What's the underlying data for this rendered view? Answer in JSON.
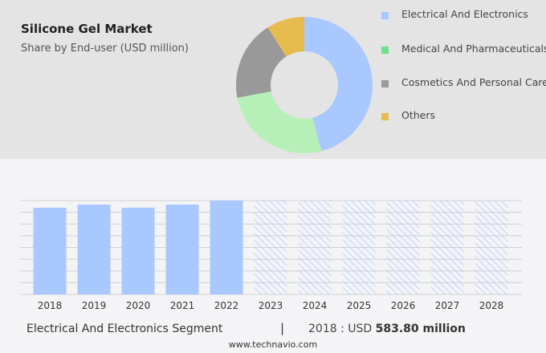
{
  "title": "Silicone Gel Market",
  "subtitle": "Share by End-user (USD million)",
  "chart_data": [
    {
      "type": "pie",
      "variant": "donut",
      "labels": [
        "Electrical And Electronics",
        "Medical And Pharmaceuticals",
        "Cosmetics And Personal Care",
        "Others"
      ],
      "values": [
        46,
        26,
        19,
        9
      ],
      "colors": [
        "#a8c8ff",
        "#b6f0b8",
        "#999999",
        "#e6bc4f"
      ],
      "legend_colors": [
        "#a8c8ff",
        "#6fe08f",
        "#999999",
        "#e6bc4f"
      ],
      "legend_placement": "right"
    },
    {
      "type": "bar",
      "categories": [
        "2018",
        "2019",
        "2020",
        "2021",
        "2022",
        "2023",
        "2024",
        "2025",
        "2026",
        "2027",
        "2028"
      ],
      "values": [
        583.8,
        605,
        584,
        605,
        632,
        null,
        null,
        null,
        null,
        null,
        null
      ],
      "forecast": [
        false,
        false,
        false,
        false,
        false,
        true,
        true,
        true,
        true,
        true,
        true
      ],
      "color": "#a8c8ff",
      "grid": true,
      "ylim": [
        0,
        632
      ]
    }
  ],
  "footer": {
    "segment": "Electrical And Electronics Segment",
    "separator": "|",
    "year_prefix": "2018 : USD",
    "value": "583.80 million",
    "website": "www.technavio.com"
  }
}
